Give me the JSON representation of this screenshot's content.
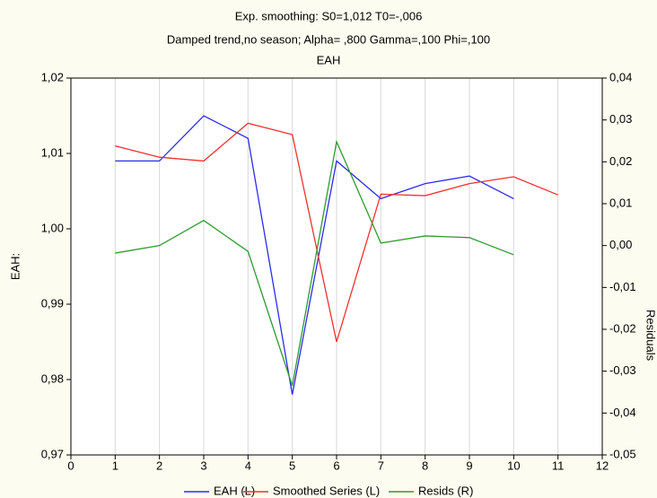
{
  "chart_data": {
    "type": "line",
    "title": "Exp. smoothing:  S0=1,012 T0=-,006",
    "subtitle": "Damped trend,no season; Alpha=  ,800 Gamma=,100 Phi=,100",
    "subtitle2": "EAH",
    "ylabel": "EAH:",
    "y2label": "Residuals",
    "xlim": [
      0,
      12
    ],
    "xticks": [
      0,
      1,
      2,
      3,
      4,
      5,
      6,
      7,
      8,
      9,
      10,
      11,
      12
    ],
    "ylim": [
      0.97,
      1.02
    ],
    "yticks": [
      {
        "value": 0.97,
        "label": "0,97"
      },
      {
        "value": 0.98,
        "label": "0,98"
      },
      {
        "value": 0.99,
        "label": "0,99"
      },
      {
        "value": 1.0,
        "label": "1,00"
      },
      {
        "value": 1.01,
        "label": "1,01"
      },
      {
        "value": 1.02,
        "label": "1,02"
      }
    ],
    "y2lim": [
      -0.05,
      0.04
    ],
    "y2ticks": [
      {
        "value": -0.05,
        "label": "-0,05"
      },
      {
        "value": -0.04,
        "label": "-0,04"
      },
      {
        "value": -0.03,
        "label": "-0,03"
      },
      {
        "value": -0.02,
        "label": "-0,02"
      },
      {
        "value": -0.01,
        "label": "-0,01"
      },
      {
        "value": 0.0,
        "label": "0,00"
      },
      {
        "value": 0.01,
        "label": "0,01"
      },
      {
        "value": 0.02,
        "label": "0,02"
      },
      {
        "value": 0.03,
        "label": "0,03"
      },
      {
        "value": 0.04,
        "label": "0,04"
      }
    ],
    "grid": "x",
    "series": [
      {
        "name": "EAH (L)",
        "color": "#2b2bf0",
        "x": [
          1,
          2,
          3,
          4,
          5,
          6,
          7,
          8,
          9,
          10
        ],
        "values": [
          1.009,
          1.009,
          1.015,
          1.012,
          0.978,
          1.009,
          1.004,
          1.006,
          1.007,
          1.004
        ]
      },
      {
        "name": "Smoothed Series (L)",
        "color": "#f03030",
        "x": [
          1,
          2,
          3,
          4,
          5,
          6,
          7,
          8,
          9,
          10,
          11
        ],
        "values": [
          1.011,
          1.0095,
          1.009,
          1.014,
          1.0125,
          0.985,
          1.0046,
          1.0044,
          1.006,
          1.0069,
          1.0045
        ]
      },
      {
        "name": "Resids (R)",
        "color": "#2f9a2f",
        "axis": "y2",
        "x": [
          1,
          2,
          3,
          4,
          5,
          6,
          7,
          8,
          9,
          10
        ],
        "values": [
          -0.0018,
          0.0,
          0.006,
          -0.0014,
          -0.0335,
          0.0248,
          0.0006,
          0.0023,
          0.0019,
          -0.0022
        ]
      }
    ]
  }
}
